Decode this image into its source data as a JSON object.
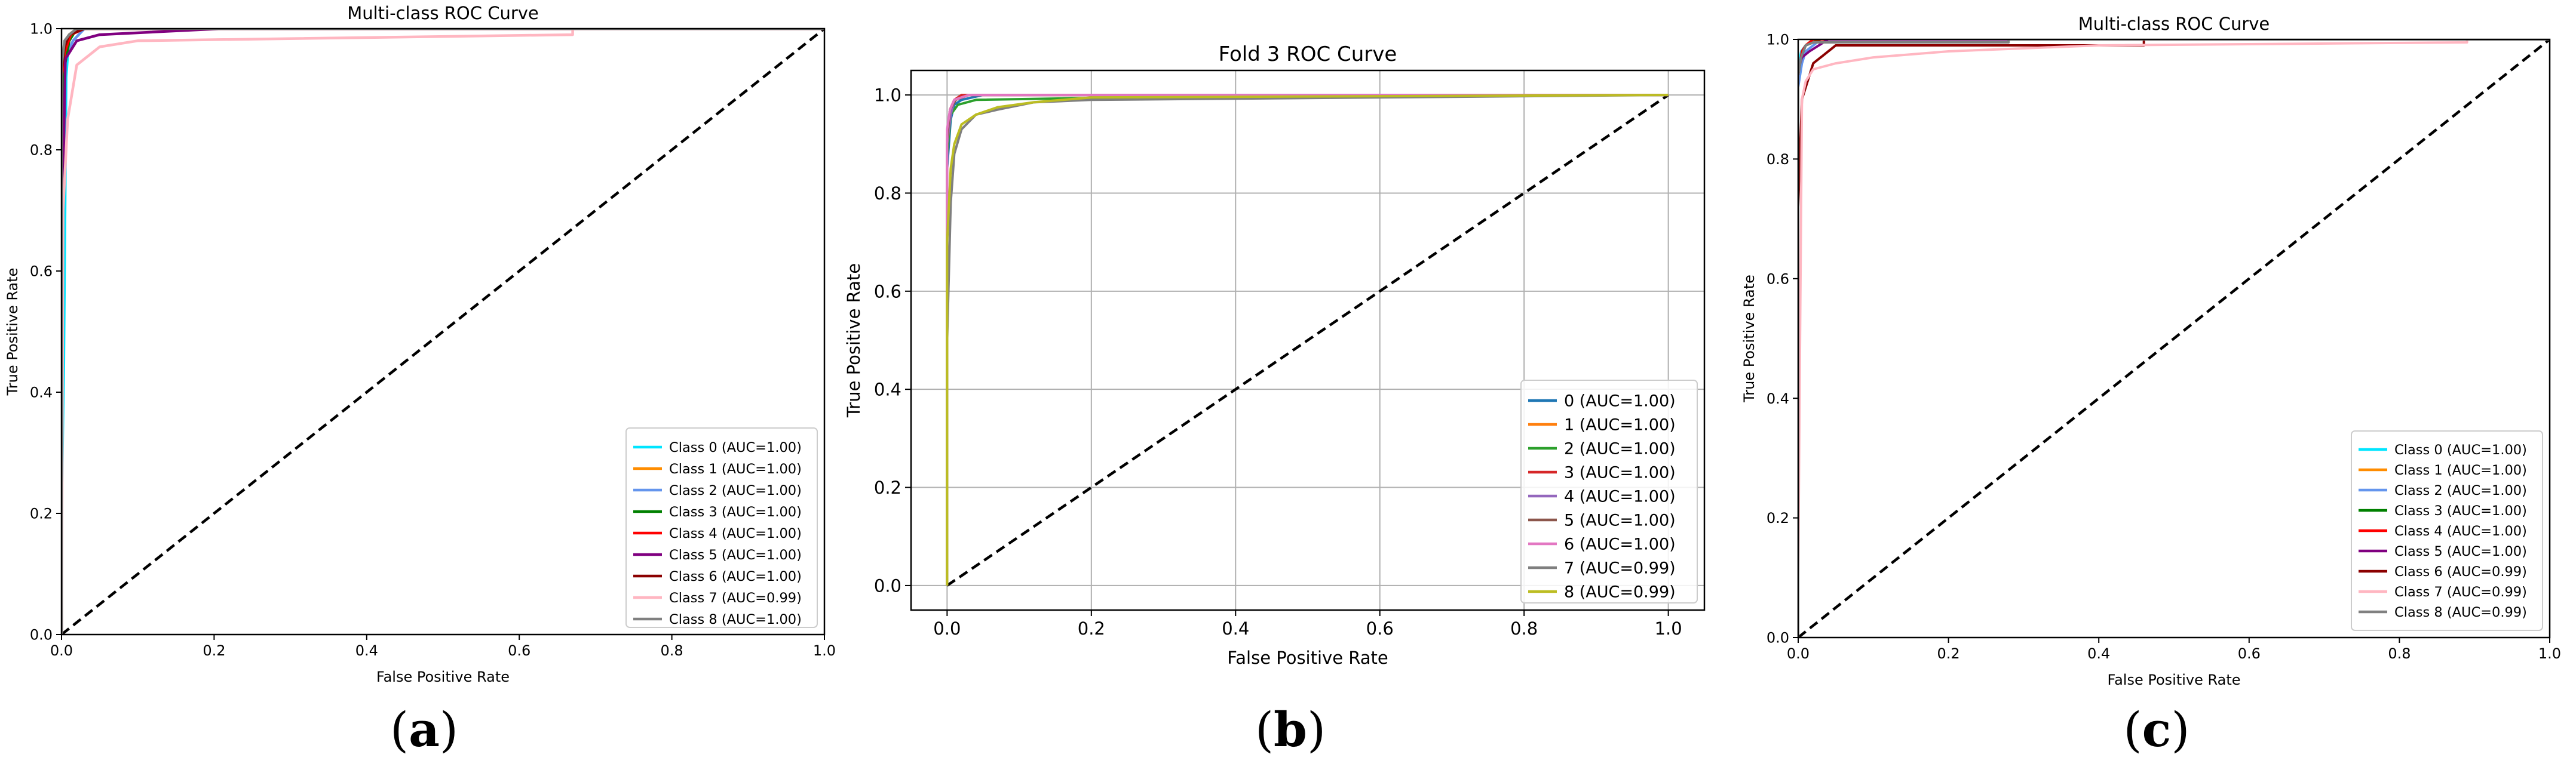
{
  "panel_labels": [
    "(a)",
    "(b)",
    "(c)"
  ],
  "chart_data": [
    {
      "type": "line",
      "title": "Multi-class ROC Curve",
      "xlabel": "False Positive Rate",
      "ylabel": "True Positive Rate",
      "xlim": [
        0.0,
        1.0
      ],
      "ylim": [
        0.0,
        1.0
      ],
      "xticks": [
        "0.0",
        "0.2",
        "0.4",
        "0.6",
        "0.8",
        "1.0"
      ],
      "yticks": [
        "0.0",
        "0.2",
        "0.4",
        "0.6",
        "0.8",
        "1.0"
      ],
      "grid": false,
      "legend_position": "lower-right",
      "series": [
        {
          "name": "Class 0 (AUC=1.00)",
          "color": "#00e5ff",
          "x": [
            0,
            0,
            0.003,
            0.006,
            0.01,
            0.02,
            1.0
          ],
          "y": [
            0,
            0.2,
            0.45,
            0.92,
            0.99,
            1.0,
            1.0
          ]
        },
        {
          "name": "Class 1 (AUC=1.00)",
          "color": "#ff8c00",
          "x": [
            0,
            0,
            0.004,
            0.01,
            0.02,
            1.0
          ],
          "y": [
            0,
            0.9,
            0.97,
            0.99,
            1.0,
            1.0
          ]
        },
        {
          "name": "Class 2 (AUC=1.00)",
          "color": "#6495ed",
          "x": [
            0,
            0,
            0.005,
            0.015,
            0.03,
            1.0
          ],
          "y": [
            0,
            0.88,
            0.95,
            0.98,
            1.0,
            1.0
          ]
        },
        {
          "name": "Class 3 (AUC=1.00)",
          "color": "#008000",
          "x": [
            0,
            0,
            0.003,
            0.01,
            0.02,
            1.0
          ],
          "y": [
            0,
            0.4,
            0.93,
            0.98,
            1.0,
            1.0
          ]
        },
        {
          "name": "Class 4 (AUC=1.00)",
          "color": "#ff0000",
          "x": [
            0,
            0,
            0.004,
            0.012,
            0.03,
            1.0
          ],
          "y": [
            0,
            0.92,
            0.96,
            0.99,
            1.0,
            1.0
          ]
        },
        {
          "name": "Class 5 (AUC=1.00)",
          "color": "#800080",
          "x": [
            0,
            0,
            0.005,
            0.02,
            0.05,
            0.21,
            1.0
          ],
          "y": [
            0,
            0.6,
            0.95,
            0.98,
            0.99,
            1.0,
            1.0
          ]
        },
        {
          "name": "Class 6 (AUC=1.00)",
          "color": "#8b0000",
          "x": [
            0,
            0,
            0.004,
            0.01,
            0.03,
            1.0
          ],
          "y": [
            0,
            0.93,
            0.97,
            0.99,
            1.0,
            1.0
          ]
        },
        {
          "name": "Class 7 (AUC=0.99)",
          "color": "#ffb6c1",
          "x": [
            0,
            0.002,
            0.008,
            0.02,
            0.05,
            0.1,
            0.67,
            0.67,
            1.0
          ],
          "y": [
            0,
            0.7,
            0.85,
            0.94,
            0.97,
            0.98,
            0.99,
            1.0,
            1.0
          ]
        },
        {
          "name": "Class 8 (AUC=1.00)",
          "color": "#808080",
          "x": [
            0,
            0,
            0.004,
            0.01,
            0.02,
            1.0
          ],
          "y": [
            0,
            0.94,
            0.98,
            0.99,
            1.0,
            1.0
          ]
        }
      ]
    },
    {
      "type": "line",
      "title": "Fold 3 ROC Curve",
      "xlabel": "False Positive Rate",
      "ylabel": "True Positive Rate",
      "xlim": [
        -0.05,
        1.05
      ],
      "ylim": [
        -0.05,
        1.05
      ],
      "xticks": [
        "0.0",
        "0.2",
        "0.4",
        "0.6",
        "0.8",
        "1.0"
      ],
      "yticks": [
        "0.0",
        "0.2",
        "0.4",
        "0.6",
        "0.8",
        "1.0"
      ],
      "grid": true,
      "legend_position": "lower-right",
      "series": [
        {
          "name": "0 (AUC=1.00)",
          "color": "#1f77b4",
          "x": [
            0,
            0,
            0.005,
            0.01,
            0.02,
            0.05,
            1.0
          ],
          "y": [
            0,
            0.85,
            0.95,
            0.98,
            0.99,
            1.0,
            1.0
          ]
        },
        {
          "name": "1 (AUC=1.00)",
          "color": "#ff7f0e",
          "x": [
            0,
            0,
            0.004,
            0.01,
            0.03,
            1.0
          ],
          "y": [
            0,
            0.9,
            0.97,
            0.99,
            1.0,
            1.0
          ]
        },
        {
          "name": "2 (AUC=1.00)",
          "color": "#2ca02c",
          "x": [
            0,
            0,
            0.005,
            0.015,
            0.04,
            0.44,
            1.0
          ],
          "y": [
            0,
            0.88,
            0.96,
            0.98,
            0.99,
            1.0,
            1.0
          ]
        },
        {
          "name": "3 (AUC=1.00)",
          "color": "#d62728",
          "x": [
            0,
            0,
            0.004,
            0.01,
            0.02,
            1.0
          ],
          "y": [
            0,
            0.92,
            0.97,
            0.99,
            1.0,
            1.0
          ]
        },
        {
          "name": "4 (AUC=1.00)",
          "color": "#9467bd",
          "x": [
            0,
            0,
            0.005,
            0.01,
            0.03,
            1.0
          ],
          "y": [
            0,
            0.9,
            0.96,
            0.99,
            1.0,
            1.0
          ]
        },
        {
          "name": "5 (AUC=1.00)",
          "color": "#8c564b",
          "x": [
            0,
            0,
            0.004,
            0.012,
            0.03,
            1.0
          ],
          "y": [
            0,
            0.91,
            0.97,
            0.99,
            1.0,
            1.0
          ]
        },
        {
          "name": "6 (AUC=1.00)",
          "color": "#e377c2",
          "x": [
            0,
            0,
            0.004,
            0.01,
            0.03,
            1.0
          ],
          "y": [
            0,
            0.93,
            0.97,
            0.99,
            1.0,
            1.0
          ]
        },
        {
          "name": "7 (AUC=0.99)",
          "color": "#7f7f7f",
          "x": [
            0,
            0,
            0.005,
            0.01,
            0.02,
            0.04,
            0.07,
            0.12,
            0.2,
            1.0
          ],
          "y": [
            0,
            0.5,
            0.78,
            0.88,
            0.93,
            0.96,
            0.97,
            0.985,
            0.99,
            1.0
          ]
        },
        {
          "name": "8 (AUC=0.99)",
          "color": "#bcbd22",
          "x": [
            0,
            0,
            0.005,
            0.01,
            0.02,
            0.04,
            0.07,
            0.12,
            0.2,
            1.0
          ],
          "y": [
            0,
            0.7,
            0.85,
            0.9,
            0.94,
            0.96,
            0.975,
            0.985,
            0.995,
            1.0
          ]
        }
      ]
    },
    {
      "type": "line",
      "title": "Multi-class ROC Curve",
      "xlabel": "False Positive Rate",
      "ylabel": "True Positive Rate",
      "xlim": [
        0.0,
        1.0
      ],
      "ylim": [
        0.0,
        1.0
      ],
      "xticks": [
        "0.0",
        "0.2",
        "0.4",
        "0.6",
        "0.8",
        "1.0"
      ],
      "yticks": [
        "0.0",
        "0.2",
        "0.4",
        "0.6",
        "0.8",
        "1.0"
      ],
      "grid": false,
      "legend_position": "lower-right",
      "series": [
        {
          "name": "Class 0 (AUC=1.00)",
          "color": "#00e5ff",
          "x": [
            0,
            0,
            0.004,
            0.01,
            0.02,
            1.0
          ],
          "y": [
            0,
            0.95,
            0.98,
            0.99,
            1.0,
            1.0
          ]
        },
        {
          "name": "Class 1 (AUC=1.00)",
          "color": "#ff8c00",
          "x": [
            0,
            0,
            0.004,
            0.01,
            0.02,
            1.0
          ],
          "y": [
            0,
            0.93,
            0.97,
            0.99,
            1.0,
            1.0
          ]
        },
        {
          "name": "Class 2 (AUC=1.00)",
          "color": "#6495ed",
          "x": [
            0,
            0,
            0.005,
            0.01,
            0.03,
            1.0
          ],
          "y": [
            0,
            0.92,
            0.96,
            0.98,
            1.0,
            1.0
          ]
        },
        {
          "name": "Class 3 (AUC=1.00)",
          "color": "#008000",
          "x": [
            0,
            0,
            0.004,
            0.01,
            0.03,
            1.0
          ],
          "y": [
            0,
            0.94,
            0.97,
            0.99,
            1.0,
            1.0
          ]
        },
        {
          "name": "Class 4 (AUC=1.00)",
          "color": "#ff0000",
          "x": [
            0,
            0,
            0.005,
            0.01,
            0.02,
            1.0
          ],
          "y": [
            0,
            0.94,
            0.98,
            0.99,
            1.0,
            1.0
          ]
        },
        {
          "name": "Class 5 (AUC=1.00)",
          "color": "#800080",
          "x": [
            0,
            0,
            0.005,
            0.015,
            0.04,
            1.0
          ],
          "y": [
            0,
            0.95,
            0.97,
            0.98,
            1.0,
            1.0
          ]
        },
        {
          "name": "Class 6 (AUC=0.99)",
          "color": "#8b0000",
          "x": [
            0,
            0,
            0.005,
            0.02,
            0.05,
            0.46,
            0.46,
            1.0
          ],
          "y": [
            0,
            0.72,
            0.9,
            0.96,
            0.99,
            0.99,
            1.0,
            1.0
          ]
        },
        {
          "name": "Class 7 (AUC=0.99)",
          "color": "#ffb6c1",
          "x": [
            0,
            0,
            0.005,
            0.01,
            0.02,
            0.05,
            0.1,
            0.2,
            0.4,
            0.89,
            0.89,
            1.0
          ],
          "y": [
            0,
            0.1,
            0.9,
            0.93,
            0.95,
            0.96,
            0.97,
            0.98,
            0.99,
            0.995,
            1.0,
            1.0
          ]
        },
        {
          "name": "Class 8 (AUC=0.99)",
          "color": "#808080",
          "x": [
            0,
            0,
            0.004,
            0.01,
            0.02,
            0.28,
            0.28,
            1.0
          ],
          "y": [
            0,
            0.94,
            0.97,
            0.99,
            0.995,
            0.995,
            1.0,
            1.0
          ]
        }
      ]
    }
  ]
}
